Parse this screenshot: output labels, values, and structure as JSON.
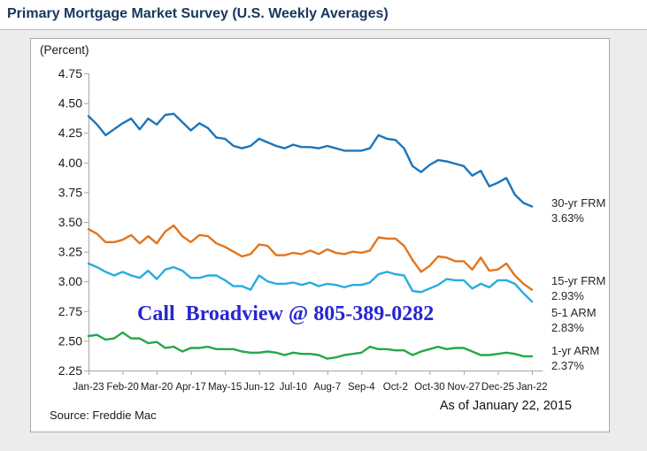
{
  "header": {
    "title": "Primary Mortgage Market Survey (U.S. Weekly Averages)"
  },
  "panel": {
    "unit_label": "(Percent)",
    "overlay_text": "Call  Broadview @ 805-389-0282",
    "source": "Source: Freddie Mac",
    "as_of": "As of January 22, 2015"
  },
  "colors": {
    "title_navy": "#17375d",
    "overlay_blue": "#2727d0",
    "axis_gray": "#a6a6a6",
    "tick_text": "#1a1a1a",
    "panel_border": "#a9a9a9",
    "page_bg": "#ececec",
    "series_30yr": "#1b75bb",
    "series_15yr": "#e2751e",
    "series_51arm": "#29abe2",
    "series_1yr": "#26a64b"
  },
  "chart_data": {
    "type": "line",
    "title": "Primary Mortgage Market Survey (U.S. Weekly Averages)",
    "ylabel": "(Percent)",
    "ylim": [
      2.25,
      4.75
    ],
    "ytick_step": 0.25,
    "y_tick_labels": [
      "2.25",
      "2.50",
      "2.75",
      "3.00",
      "3.25",
      "3.50",
      "3.75",
      "4.00",
      "4.25",
      "4.50",
      "4.75"
    ],
    "x_tick_labels": [
      "Jan-23",
      "Feb-20",
      "Mar-20",
      "Apr-17",
      "May-15",
      "Jun-12",
      "Jul-10",
      "Aug-7",
      "Sep-4",
      "Oct-2",
      "Oct-30",
      "Nov-27",
      "Dec-25",
      "Jan-22"
    ],
    "x_tick_indices": [
      0,
      4,
      8,
      12,
      16,
      20,
      24,
      28,
      32,
      36,
      40,
      44,
      48,
      52
    ],
    "n_points": 53,
    "grid": false,
    "legend_position": "right of line ends",
    "series": [
      {
        "name": "30-yr FRM",
        "last_label": "3.63%",
        "color": "#1b75bb",
        "values": [
          4.39,
          4.32,
          4.23,
          4.28,
          4.33,
          4.37,
          4.28,
          4.37,
          4.32,
          4.4,
          4.41,
          4.34,
          4.27,
          4.33,
          4.29,
          4.21,
          4.2,
          4.14,
          4.12,
          4.14,
          4.2,
          4.17,
          4.14,
          4.12,
          4.15,
          4.13,
          4.13,
          4.12,
          4.14,
          4.12,
          4.1,
          4.1,
          4.1,
          4.12,
          4.23,
          4.2,
          4.19,
          4.12,
          3.97,
          3.92,
          3.98,
          4.02,
          4.01,
          3.99,
          3.97,
          3.89,
          3.93,
          3.8,
          3.83,
          3.87,
          3.73,
          3.66,
          3.63
        ]
      },
      {
        "name": "15-yr FRM",
        "last_label": "2.93%",
        "color": "#e2751e",
        "values": [
          3.44,
          3.4,
          3.33,
          3.33,
          3.35,
          3.39,
          3.32,
          3.38,
          3.32,
          3.42,
          3.47,
          3.38,
          3.33,
          3.39,
          3.38,
          3.32,
          3.29,
          3.25,
          3.21,
          3.23,
          3.31,
          3.3,
          3.22,
          3.22,
          3.24,
          3.23,
          3.26,
          3.23,
          3.27,
          3.24,
          3.23,
          3.25,
          3.24,
          3.26,
          3.37,
          3.36,
          3.36,
          3.3,
          3.18,
          3.08,
          3.13,
          3.21,
          3.2,
          3.17,
          3.17,
          3.1,
          3.2,
          3.09,
          3.1,
          3.15,
          3.05,
          2.98,
          2.93
        ]
      },
      {
        "name": "5-1 ARM",
        "last_label": "2.83%",
        "color": "#29abe2",
        "values": [
          3.15,
          3.12,
          3.08,
          3.05,
          3.08,
          3.05,
          3.03,
          3.09,
          3.02,
          3.1,
          3.12,
          3.09,
          3.03,
          3.03,
          3.05,
          3.05,
          3.01,
          2.96,
          2.96,
          2.93,
          3.05,
          3.0,
          2.98,
          2.98,
          2.99,
          2.97,
          2.99,
          2.96,
          2.98,
          2.97,
          2.95,
          2.97,
          2.97,
          2.99,
          3.06,
          3.08,
          3.06,
          3.05,
          2.92,
          2.91,
          2.94,
          2.97,
          3.02,
          3.01,
          3.01,
          2.94,
          2.98,
          2.95,
          3.01,
          3.01,
          2.98,
          2.9,
          2.83
        ]
      },
      {
        "name": "1-yr ARM",
        "last_label": "2.37%",
        "color": "#26a64b",
        "values": [
          2.54,
          2.55,
          2.51,
          2.52,
          2.57,
          2.52,
          2.52,
          2.48,
          2.49,
          2.44,
          2.45,
          2.41,
          2.44,
          2.44,
          2.45,
          2.43,
          2.43,
          2.43,
          2.41,
          2.4,
          2.4,
          2.41,
          2.4,
          2.38,
          2.4,
          2.39,
          2.39,
          2.38,
          2.35,
          2.36,
          2.38,
          2.39,
          2.4,
          2.45,
          2.43,
          2.43,
          2.42,
          2.42,
          2.38,
          2.41,
          2.43,
          2.45,
          2.43,
          2.44,
          2.44,
          2.41,
          2.38,
          2.38,
          2.39,
          2.4,
          2.39,
          2.37,
          2.37
        ]
      }
    ]
  }
}
